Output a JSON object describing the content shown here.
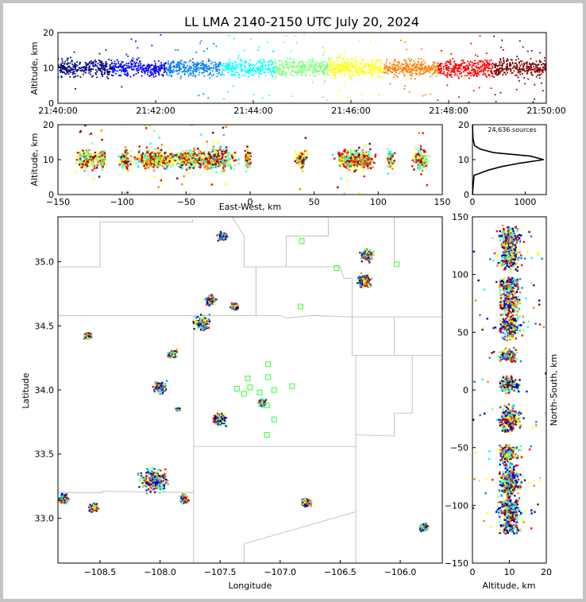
{
  "chart_data": {
    "type": "scatter",
    "title": "LL LMA 2140-2150 UTC July 20, 2024",
    "source_count": "24,636 sources",
    "colormap": [
      "#00007f",
      "#0000ff",
      "#0080ff",
      "#00ffff",
      "#80ff80",
      "#ffff00",
      "#ff8000",
      "#ff0000",
      "#7f0000"
    ],
    "panels": {
      "time_height": {
        "ylabel": "Altitude, km",
        "ylim": [
          0,
          20
        ],
        "yticks": [
          "0",
          "10",
          "20"
        ],
        "xticks": [
          "21:40:00",
          "21:42:00",
          "21:44:00",
          "21:46:00",
          "21:48:00",
          "21:50:00"
        ],
        "xlim_minutes": [
          0,
          10
        ],
        "main_band_km": [
          6,
          14
        ]
      },
      "ew_height": {
        "xlabel": "East-West, km",
        "ylabel": "Altitude, km",
        "xlim": [
          -150,
          150
        ],
        "ylim": [
          0,
          20
        ],
        "xticks": [
          "−150",
          "−100",
          "−50",
          "0",
          "50",
          "100",
          "150"
        ],
        "yticks": [
          "0",
          "10",
          "20"
        ]
      },
      "histogram": {
        "xlim": [
          0,
          1400
        ],
        "ylim": [
          0,
          20
        ],
        "xticks": [
          "0",
          "1000"
        ],
        "yticks": [
          "0",
          "10",
          "20"
        ],
        "peak_altitude_km": 10,
        "peak_count": 1350,
        "profile": [
          [
            0,
            0
          ],
          [
            5.5,
            30
          ],
          [
            6,
            120
          ],
          [
            7,
            300
          ],
          [
            8,
            550
          ],
          [
            9,
            900
          ],
          [
            10,
            1350
          ],
          [
            11,
            1100
          ],
          [
            12,
            400
          ],
          [
            13,
            150
          ],
          [
            14,
            40
          ],
          [
            16,
            10
          ],
          [
            20,
            0
          ]
        ]
      },
      "plan_view": {
        "xlabel": "Longitude",
        "ylabel": "Latitude",
        "xlim": [
          -108.85,
          -105.65
        ],
        "ylim": [
          32.65,
          35.35
        ],
        "xticks": [
          "−108.5",
          "−108.0",
          "−107.5",
          "−107.0",
          "−106.5",
          "−106.0"
        ],
        "yticks": [
          "33.0",
          "33.5",
          "34.0",
          "34.5",
          "35.0"
        ],
        "stations": [
          [
            -107.1,
            34.2
          ],
          [
            -107.1,
            34.1
          ],
          [
            -107.27,
            34.09
          ],
          [
            -107.36,
            34.01
          ],
          [
            -107.25,
            34.02
          ],
          [
            -107.17,
            33.98
          ],
          [
            -107.3,
            33.97
          ],
          [
            -107.05,
            34.0
          ],
          [
            -106.9,
            34.03
          ],
          [
            -107.11,
            33.88
          ],
          [
            -107.05,
            33.77
          ],
          [
            -107.11,
            33.65
          ],
          [
            -106.82,
            35.16
          ],
          [
            -106.83,
            34.65
          ],
          [
            -106.53,
            34.95
          ],
          [
            -106.03,
            34.98
          ]
        ],
        "clusters": [
          {
            "lon": -107.48,
            "lat": 35.2,
            "r": 0.05
          },
          {
            "lon": -106.28,
            "lat": 35.05,
            "r": 0.07
          },
          {
            "lon": -106.3,
            "lat": 34.85,
            "r": 0.08
          },
          {
            "lon": -107.58,
            "lat": 34.7,
            "r": 0.06
          },
          {
            "lon": -107.38,
            "lat": 34.65,
            "r": 0.04
          },
          {
            "lon": -107.65,
            "lat": 34.52,
            "r": 0.09
          },
          {
            "lon": -108.6,
            "lat": 34.42,
            "r": 0.04
          },
          {
            "lon": -107.9,
            "lat": 34.28,
            "r": 0.05
          },
          {
            "lon": -108.0,
            "lat": 34.02,
            "r": 0.07
          },
          {
            "lon": -107.85,
            "lat": 33.85,
            "r": 0.02
          },
          {
            "lon": -107.5,
            "lat": 33.77,
            "r": 0.07
          },
          {
            "lon": -107.15,
            "lat": 33.9,
            "r": 0.04
          },
          {
            "lon": -108.05,
            "lat": 33.3,
            "r": 0.15
          },
          {
            "lon": -107.8,
            "lat": 33.15,
            "r": 0.05
          },
          {
            "lon": -108.55,
            "lat": 33.08,
            "r": 0.05
          },
          {
            "lon": -108.8,
            "lat": 33.15,
            "r": 0.05
          },
          {
            "lon": -106.78,
            "lat": 33.12,
            "r": 0.05
          },
          {
            "lon": -105.8,
            "lat": 32.93,
            "r": 0.05
          }
        ]
      },
      "ns_height": {
        "xlabel": "Altitude, km",
        "ylabel": "North-South, km",
        "xlim": [
          0,
          20
        ],
        "ylim": [
          -150,
          150
        ],
        "xticks": [
          "0",
          "10",
          "20"
        ],
        "yticks": [
          "150",
          "100",
          "50",
          "0",
          "−50",
          "−100",
          "−150"
        ]
      },
      "ew_groups": [
        {
          "x": -127,
          "w": 12
        },
        {
          "x": -115,
          "w": 5
        },
        {
          "x": -97,
          "w": 6
        },
        {
          "x": -75,
          "w": 20
        },
        {
          "x": -48,
          "w": 18
        },
        {
          "x": -25,
          "w": 20
        },
        {
          "x": -2,
          "w": 4
        },
        {
          "x": 40,
          "w": 6
        },
        {
          "x": 78,
          "w": 15
        },
        {
          "x": 90,
          "w": 10
        },
        {
          "x": 110,
          "w": 4
        },
        {
          "x": 133,
          "w": 8
        }
      ],
      "ns_groups": [
        {
          "y": 132,
          "h": 12
        },
        {
          "y": 115,
          "h": 15
        },
        {
          "y": 90,
          "h": 10
        },
        {
          "y": 75,
          "h": 12
        },
        {
          "y": 55,
          "h": 15
        },
        {
          "y": 30,
          "h": 8
        },
        {
          "y": 5,
          "h": 10
        },
        {
          "y": -25,
          "h": 15
        },
        {
          "y": -55,
          "h": 10
        },
        {
          "y": -80,
          "h": 20
        },
        {
          "y": -105,
          "h": 15
        },
        {
          "y": -120,
          "h": 6
        }
      ]
    }
  }
}
